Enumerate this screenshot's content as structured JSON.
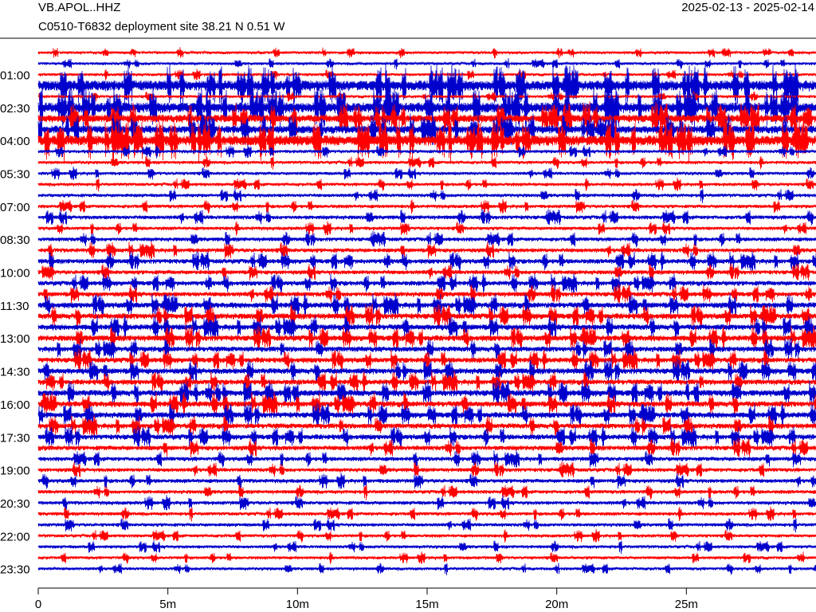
{
  "chart_data": {
    "type": "helicorder",
    "title": "VB.APOL..HHZ",
    "subtitle": "C0510-T6832 deployment site  38.21 N 0.51 W",
    "date_range": "2025-02-13 - 2025-02-14",
    "categories": [
      null,
      null,
      "01:00",
      null,
      null,
      "02:30",
      null,
      null,
      "04:00",
      null,
      null,
      "05:30",
      null,
      null,
      "07:00",
      null,
      null,
      "08:30",
      null,
      null,
      "10:00",
      null,
      null,
      "11:30",
      null,
      null,
      "13:00",
      null,
      null,
      "14:30",
      null,
      null,
      "16:00",
      null,
      null,
      "17:30",
      null,
      null,
      "19:00",
      null,
      null,
      "20:30",
      null,
      null,
      "22:00",
      null,
      null,
      "23:30"
    ],
    "values": [
      1,
      1,
      1,
      4,
      1,
      4,
      3,
      3,
      4,
      1.2,
      1.2,
      1.2,
      1.2,
      1.3,
      1.3,
      1.5,
      1.3,
      1.5,
      1.6,
      1.8,
      1.6,
      1.8,
      1.8,
      2.2,
      2.2,
      2.2,
      2.2,
      2,
      2,
      2.2,
      2,
      2.4,
      2.2,
      2.2,
      2,
      2,
      1.8,
      1.6,
      1.5,
      1.5,
      1.4,
      1.4,
      1.3,
      1.3,
      1.2,
      1.2,
      1.1,
      1.1
    ],
    "colors": [
      "#ff0000",
      "#0000cc"
    ],
    "xlim": [
      0,
      30
    ],
    "xticks": [
      0,
      {
        "value": 5,
        "label": "5m"
      },
      {
        "value": 10,
        "label": "10m"
      },
      {
        "value": 15,
        "label": "15m"
      },
      {
        "value": 20,
        "label": "20m"
      },
      {
        "value": 25,
        "label": "25m"
      }
    ]
  }
}
